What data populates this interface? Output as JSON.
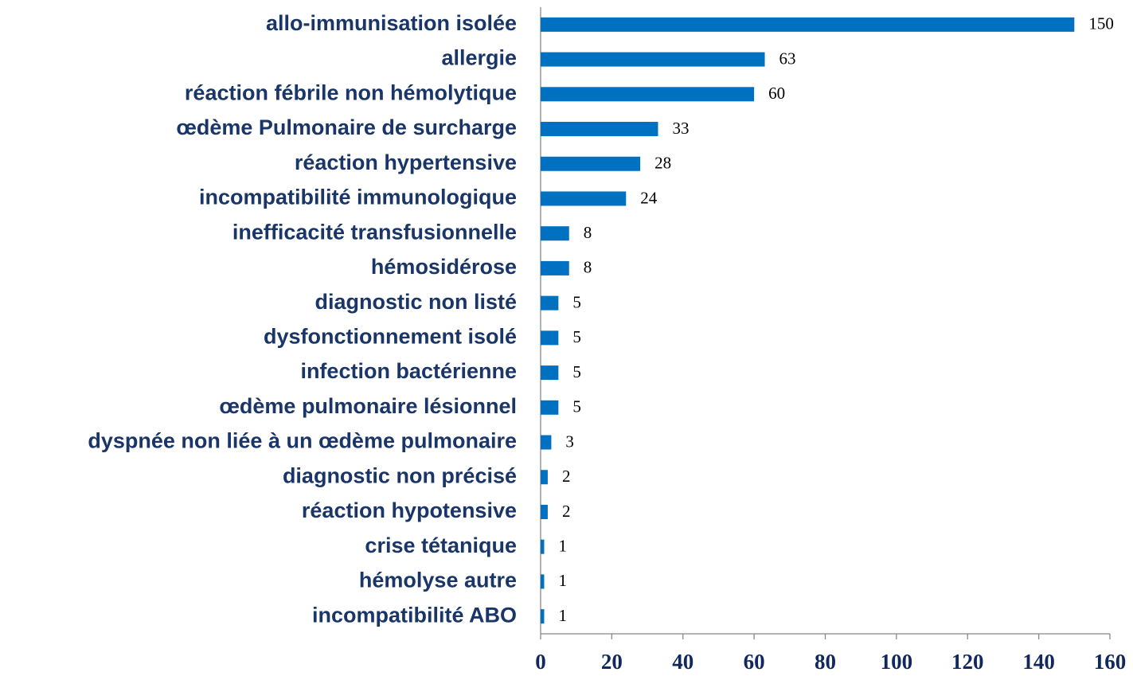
{
  "chart_data": {
    "type": "bar",
    "horizontal": true,
    "categories": [
      "allo-immunisation isolée",
      "allergie",
      "réaction fébrile non hémolytique",
      "œdème Pulmonaire de surcharge",
      "réaction hypertensive",
      "incompatibilité immunologique",
      "inefficacité transfusionnelle",
      "hémosidérose",
      "diagnostic non listé",
      "dysfonctionnement isolé",
      "infection bactérienne",
      "œdème pulmonaire lésionnel",
      "dyspnée non liée à un œdème pulmonaire",
      "diagnostic non précisé",
      "réaction hypotensive",
      "crise tétanique",
      "hémolyse autre",
      "incompatibilité ABO"
    ],
    "values": [
      150,
      63,
      60,
      33,
      28,
      24,
      8,
      8,
      5,
      5,
      5,
      5,
      3,
      2,
      2,
      1,
      1,
      1
    ],
    "color": "#0070c0",
    "xlim": [
      0,
      160
    ],
    "xticks": [
      0,
      20,
      40,
      60,
      80,
      100,
      120,
      140,
      160
    ],
    "grid": false
  }
}
